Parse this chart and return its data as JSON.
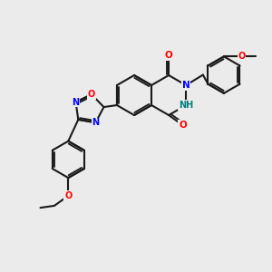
{
  "background_color": "#ebebeb",
  "bond_color": "#1a1a1a",
  "atom_colors": {
    "N": "#0000ff",
    "O": "#ff0000",
    "NH": "#008080",
    "C": "#1a1a1a"
  },
  "figsize": [
    3.0,
    3.0
  ],
  "dpi": 100
}
